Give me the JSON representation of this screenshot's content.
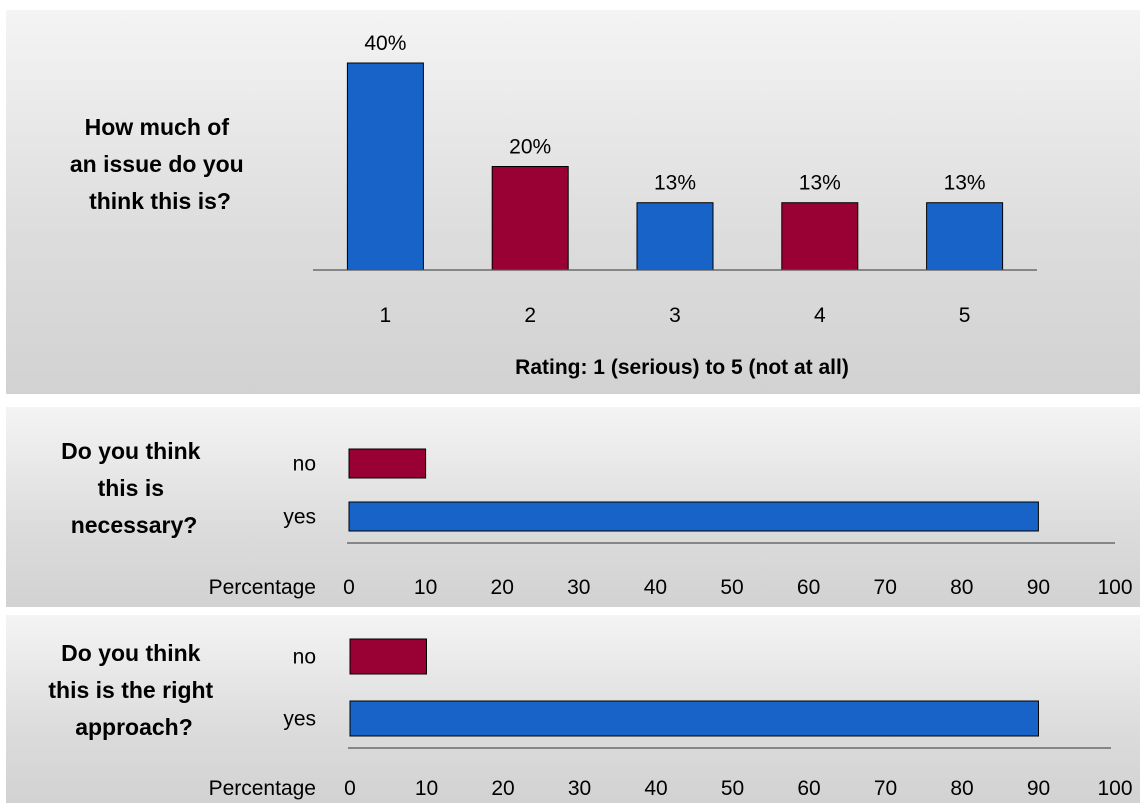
{
  "colors": {
    "blue": "#1763c7",
    "red": "#990033",
    "axis": "#555555"
  },
  "chart_data": [
    {
      "type": "bar",
      "title": "How much of an issue do you think this is?",
      "title_lines": [
        "How much of",
        "an issue do you",
        "think this is?"
      ],
      "xlabel": "Rating: 1 (serious) to 5 (not at all)",
      "ylabel": "",
      "categories": [
        "1",
        "2",
        "3",
        "4",
        "5"
      ],
      "values": [
        40,
        20,
        13,
        13,
        13
      ],
      "value_labels": [
        "40%",
        "20%",
        "13%",
        "13%",
        "13%"
      ],
      "bar_colors": [
        "#1763c7",
        "#990033",
        "#1763c7",
        "#990033",
        "#1763c7"
      ],
      "ylim": [
        0,
        40
      ],
      "grid": false,
      "legend": "none"
    },
    {
      "type": "bar",
      "orientation": "horizontal",
      "title": "Do you think this is necessary?",
      "title_lines": [
        "Do you think",
        "this is",
        "necessary?"
      ],
      "xlabel": "Percentage",
      "categories": [
        "no",
        "yes"
      ],
      "values": [
        10,
        90
      ],
      "bar_colors": [
        "#990033",
        "#1763c7"
      ],
      "xlim": [
        0,
        100
      ],
      "xticks": [
        "0",
        "10",
        "20",
        "30",
        "40",
        "50",
        "60",
        "70",
        "80",
        "90",
        "100"
      ],
      "grid": false,
      "legend": "none"
    },
    {
      "type": "bar",
      "orientation": "horizontal",
      "title": "Do you think this is the right approach?",
      "title_lines": [
        "Do you think",
        "this is the right",
        "approach?"
      ],
      "xlabel": "Percentage",
      "categories": [
        "no",
        "yes"
      ],
      "values": [
        10,
        90
      ],
      "bar_colors": [
        "#990033",
        "#1763c7"
      ],
      "xlim": [
        0,
        100
      ],
      "xticks": [
        "0",
        "10",
        "20",
        "30",
        "40",
        "50",
        "60",
        "70",
        "80",
        "90",
        "100"
      ],
      "grid": false,
      "legend": "none"
    }
  ]
}
